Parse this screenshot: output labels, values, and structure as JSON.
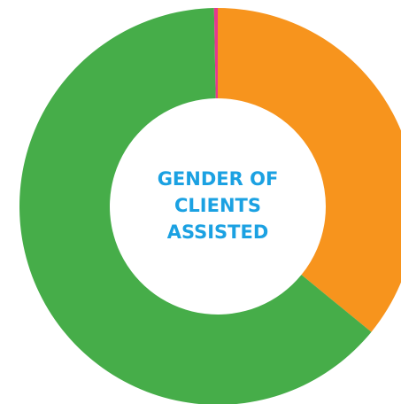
{
  "chart_data": {
    "type": "donut",
    "title_lines": [
      "GENDER OF",
      "CLIENTS",
      "ASSISTED"
    ],
    "values": [
      35.9,
      63.8,
      0.3
    ],
    "colors": [
      "#f7941d",
      "#46ad49",
      "#e6388f"
    ],
    "title_color": "#1ba1e2"
  }
}
